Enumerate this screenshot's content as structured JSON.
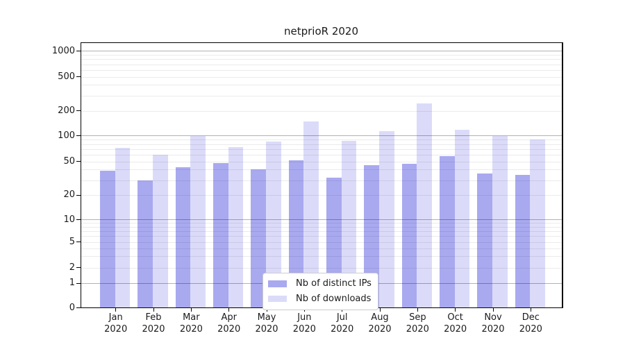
{
  "chart_data": {
    "type": "bar",
    "title": "netprioR 2020",
    "year": "2020",
    "categories": [
      "Jan",
      "Feb",
      "Mar",
      "Apr",
      "May",
      "Jun",
      "Jul",
      "Aug",
      "Sep",
      "Oct",
      "Nov",
      "Dec"
    ],
    "series": [
      {
        "name": "Nb of distinct IPs",
        "color": "#a9a9f0",
        "values": [
          39,
          30,
          43,
          48,
          40,
          52,
          32,
          45,
          47,
          58,
          36,
          35
        ]
      },
      {
        "name": "Nb of downloads",
        "color": "#dbdbf9",
        "values": [
          72,
          60,
          100,
          73,
          86,
          150,
          87,
          114,
          242,
          119,
          100,
          90
        ]
      }
    ],
    "y_axis": {
      "scale": "log-like (0,1,2,5 … 1000)",
      "tick_values": [
        0,
        1,
        2,
        5,
        10,
        20,
        50,
        100,
        200,
        500,
        1000
      ],
      "tick_labels": [
        "0",
        "1",
        "2",
        "5",
        "10",
        "20",
        "50",
        "100",
        "200",
        "500",
        "1000"
      ],
      "range": [
        0,
        1200
      ]
    },
    "x_axis": {
      "label_format": "month over year, two lines"
    },
    "grid": {
      "major_values": [
        1,
        10,
        100,
        1000
      ],
      "minor_rule": "2-9 per decade"
    },
    "legend": {
      "position": "inside bottom-center",
      "entries": [
        "Nb of distinct IPs",
        "Nb of downloads"
      ]
    }
  }
}
